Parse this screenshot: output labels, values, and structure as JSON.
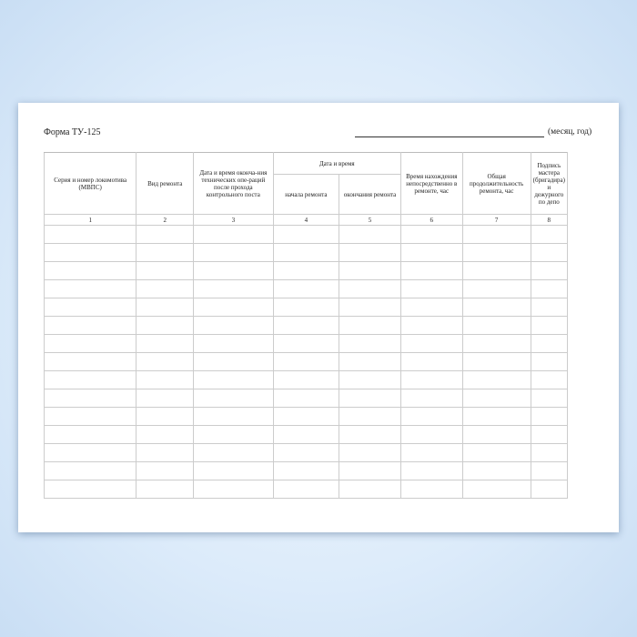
{
  "form": {
    "title": "Форма ТУ-125",
    "period_label": "(месяц, год)"
  },
  "table": {
    "headers": {
      "c1": "Серия и номер локомотива (МВПС)",
      "c2": "Вид ремонта",
      "c3": "Дата и время оконча-ния технических опе-раций после прохода контрольного поста",
      "group": "Дата и время",
      "c4": "начала ремонта",
      "c5": "окончания ремонта",
      "c6": "Время нахождения непосредственно в ремонте, час",
      "c7": "Общая продолжительность ремонта, час",
      "c8": "Подпись мастера (бригадира) и дежурного по депо"
    },
    "column_numbers": [
      "1",
      "2",
      "3",
      "4",
      "5",
      "6",
      "7",
      "8"
    ],
    "empty_rows": 15
  }
}
